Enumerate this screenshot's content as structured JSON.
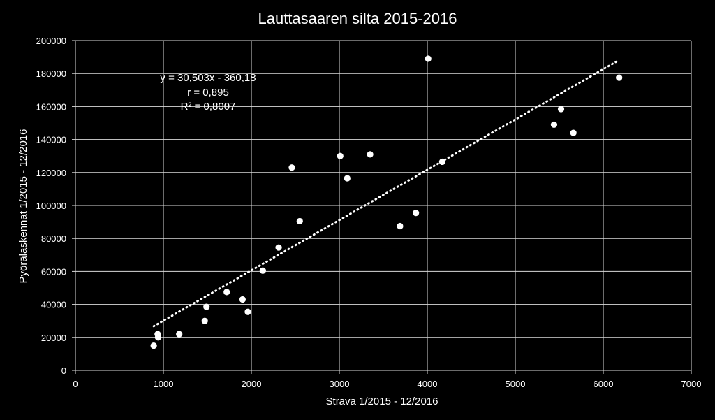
{
  "chart_data": {
    "type": "scatter",
    "title": "Lauttasaaren silta 2015-2016",
    "xlabel": "Strava 1/2015 - 12/2016",
    "ylabel": "Pyörälaskennat  1/2015 - 12/2016",
    "xlim": [
      0,
      7000
    ],
    "ylim": [
      0,
      200000
    ],
    "x_ticks": [
      "0",
      "1000",
      "2000",
      "3000",
      "4000",
      "5000",
      "6000",
      "7000"
    ],
    "y_ticks": [
      "0",
      "20000",
      "40000",
      "60000",
      "80000",
      "100000",
      "120000",
      "140000",
      "160000",
      "180000",
      "200000"
    ],
    "grid": true,
    "point_color": "#ffffff",
    "trendline": {
      "style": "dotted",
      "color": "#ffffff",
      "slope": 30.503,
      "intercept": -360.18,
      "x_range": [
        890,
        6180
      ]
    },
    "annotations": [
      "y = 30,503x - 360,18",
      "r = 0,895",
      "R² = 0,8007"
    ],
    "points": [
      {
        "x": 890,
        "y": 15000
      },
      {
        "x": 935,
        "y": 22000
      },
      {
        "x": 940,
        "y": 20000
      },
      {
        "x": 1180,
        "y": 22000
      },
      {
        "x": 1470,
        "y": 30000
      },
      {
        "x": 1490,
        "y": 38500
      },
      {
        "x": 1720,
        "y": 47500
      },
      {
        "x": 1900,
        "y": 43000
      },
      {
        "x": 1960,
        "y": 35500
      },
      {
        "x": 2130,
        "y": 60500
      },
      {
        "x": 2310,
        "y": 74500
      },
      {
        "x": 2460,
        "y": 123000
      },
      {
        "x": 2550,
        "y": 90500
      },
      {
        "x": 3010,
        "y": 130000
      },
      {
        "x": 3090,
        "y": 116500
      },
      {
        "x": 3350,
        "y": 131000
      },
      {
        "x": 3690,
        "y": 87500
      },
      {
        "x": 3870,
        "y": 95500
      },
      {
        "x": 4010,
        "y": 189000
      },
      {
        "x": 4170,
        "y": 126500
      },
      {
        "x": 5440,
        "y": 149000
      },
      {
        "x": 5520,
        "y": 158500
      },
      {
        "x": 5660,
        "y": 144000
      },
      {
        "x": 6180,
        "y": 177500
      }
    ]
  }
}
